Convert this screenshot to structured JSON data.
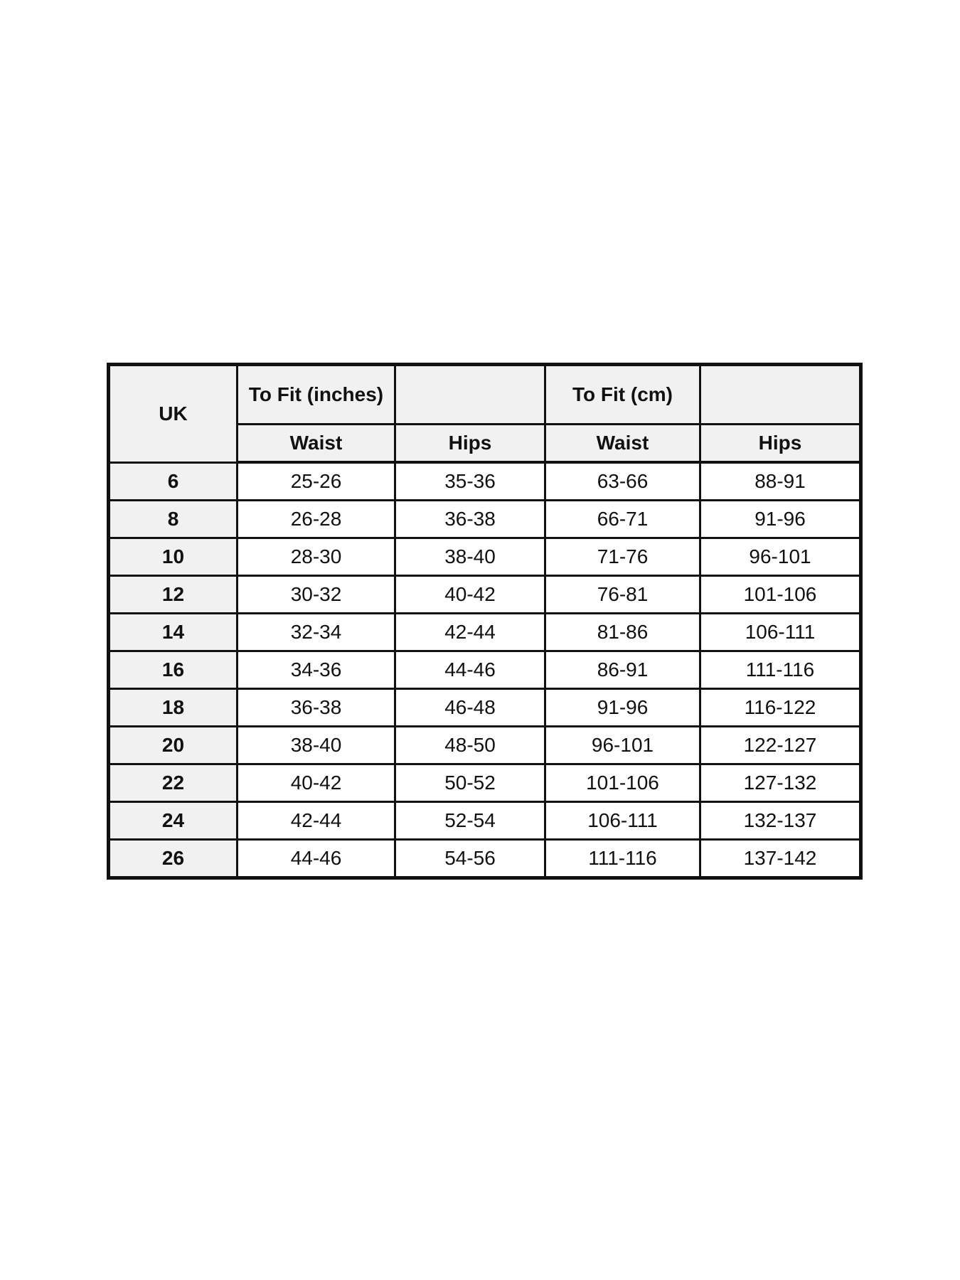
{
  "page": {
    "background_color": "#ffffff",
    "border_color": "#111111",
    "header_bg_color": "#f1f1f1",
    "data_cell_bg_color": "#ffffff",
    "text_color": "#111111"
  },
  "table": {
    "header": {
      "uk": "UK",
      "to_fit_inches": "To Fit (inches)",
      "to_fit_inches_spacer": "",
      "to_fit_cm": "To Fit (cm)",
      "to_fit_cm_spacer": "",
      "sub_headers": [
        "Waist",
        "Hips",
        "Waist",
        "Hips"
      ]
    },
    "rows": [
      {
        "uk": "6",
        "waist_in": "25-26",
        "hips_in": "35-36",
        "waist_cm": "63-66",
        "hips_cm": "88-91"
      },
      {
        "uk": "8",
        "waist_in": "26-28",
        "hips_in": "36-38",
        "waist_cm": "66-71",
        "hips_cm": "91-96"
      },
      {
        "uk": "10",
        "waist_in": "28-30",
        "hips_in": "38-40",
        "waist_cm": "71-76",
        "hips_cm": "96-101"
      },
      {
        "uk": "12",
        "waist_in": "30-32",
        "hips_in": "40-42",
        "waist_cm": "76-81",
        "hips_cm": "101-106"
      },
      {
        "uk": "14",
        "waist_in": "32-34",
        "hips_in": "42-44",
        "waist_cm": "81-86",
        "hips_cm": "106-111"
      },
      {
        "uk": "16",
        "waist_in": "34-36",
        "hips_in": "44-46",
        "waist_cm": "86-91",
        "hips_cm": "111-116"
      },
      {
        "uk": "18",
        "waist_in": "36-38",
        "hips_in": "46-48",
        "waist_cm": "91-96",
        "hips_cm": "116-122"
      },
      {
        "uk": "20",
        "waist_in": "38-40",
        "hips_in": "48-50",
        "waist_cm": "96-101",
        "hips_cm": "122-127"
      },
      {
        "uk": "22",
        "waist_in": "40-42",
        "hips_in": "50-52",
        "waist_cm": "101-106",
        "hips_cm": "127-132"
      },
      {
        "uk": "24",
        "waist_in": "42-44",
        "hips_in": "52-54",
        "waist_cm": "106-111",
        "hips_cm": "132-137"
      },
      {
        "uk": "26",
        "waist_in": "44-46",
        "hips_in": "54-56",
        "waist_cm": "111-116",
        "hips_cm": "137-142"
      }
    ]
  }
}
